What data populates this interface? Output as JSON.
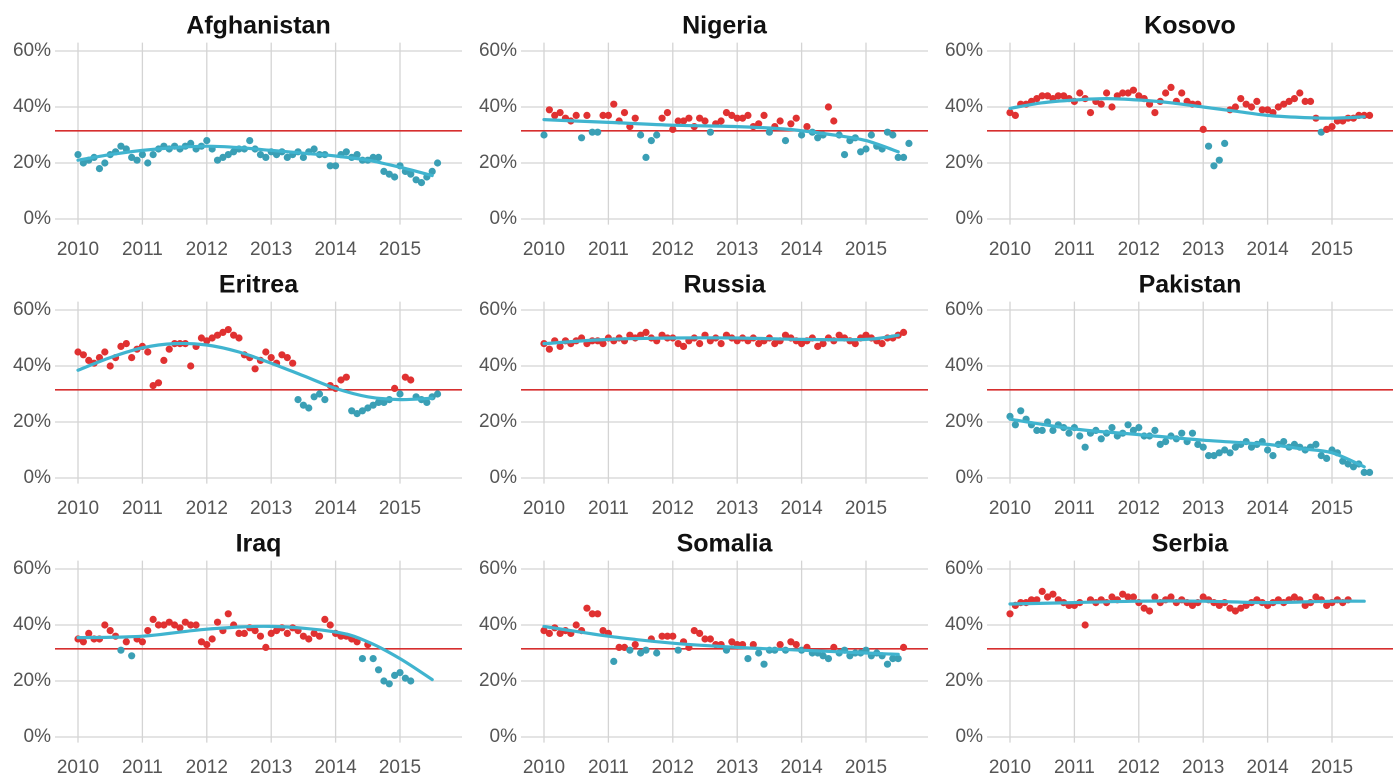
{
  "colors": {
    "above": "#e03131",
    "below": "#3a9fb5",
    "trend": "#40b4cf",
    "reference": "#d62f2f"
  },
  "chart_data": {
    "type": "scatter",
    "layout": "3x3 small multiples",
    "reference_line": 31.5,
    "x_ticks": [
      "2010",
      "2011",
      "2012",
      "2013",
      "2014",
      "2015"
    ],
    "y_ticks": [
      "0%",
      "20%",
      "40%",
      "60%"
    ],
    "xlim": [
      2009.6,
      2015.9
    ],
    "ylim": [
      -2,
      63
    ],
    "grid": true,
    "panels": [
      {
        "title": "Afghanistan",
        "x_start": 2010,
        "step_months": 1,
        "values": [
          23,
          20,
          21,
          22,
          18,
          20,
          23,
          24,
          26,
          25,
          22,
          21,
          23,
          20,
          23,
          25,
          26,
          25,
          26,
          25,
          26,
          27,
          25,
          26,
          28,
          25,
          21,
          22,
          23,
          24,
          25,
          25,
          28,
          25,
          23,
          22,
          24,
          23,
          24,
          22,
          23,
          24,
          22,
          24,
          25,
          23,
          23,
          19,
          19,
          23,
          24,
          22,
          23,
          21,
          21,
          22,
          22,
          17,
          16,
          15,
          19,
          17,
          16,
          14,
          13,
          15,
          17,
          20
        ],
        "trend": [
          [
            2010.0,
            21
          ],
          [
            2010.5,
            23
          ],
          [
            2011.0,
            24.5
          ],
          [
            2011.5,
            25.5
          ],
          [
            2012.0,
            26
          ],
          [
            2012.5,
            25.5
          ],
          [
            2013.0,
            24.5
          ],
          [
            2013.5,
            23.5
          ],
          [
            2014.0,
            22.5
          ],
          [
            2014.5,
            21
          ],
          [
            2015.0,
            18.5
          ],
          [
            2015.5,
            15.5
          ]
        ]
      },
      {
        "title": "Nigeria",
        "x_start": 2010,
        "step_months": 1,
        "values": [
          30,
          39,
          37,
          38,
          36,
          35,
          37,
          29,
          37,
          31,
          31,
          37,
          37,
          41,
          35,
          38,
          33,
          36,
          30,
          22,
          28,
          30,
          36,
          38,
          32,
          35,
          35,
          36,
          33,
          36,
          35,
          31,
          34,
          35,
          38,
          37,
          36,
          36,
          37,
          33,
          34,
          37,
          31,
          33,
          35,
          28,
          34,
          36,
          30,
          33,
          31,
          29,
          30,
          40,
          35,
          30,
          23,
          28,
          29,
          24,
          25,
          30,
          26,
          25,
          31,
          30,
          22,
          22,
          27
        ],
        "trend": [
          [
            2010.0,
            35.5
          ],
          [
            2011.0,
            34.5
          ],
          [
            2012.0,
            33.5
          ],
          [
            2013.0,
            33
          ],
          [
            2013.8,
            32
          ],
          [
            2014.5,
            30
          ],
          [
            2015.0,
            28
          ],
          [
            2015.5,
            24
          ]
        ]
      },
      {
        "title": "Kosovo",
        "x_start": 2010,
        "step_months": 1,
        "values": [
          38,
          37,
          41,
          41,
          42,
          43,
          44,
          44,
          43,
          44,
          44,
          43,
          42,
          45,
          43,
          38,
          42,
          41,
          45,
          40,
          44,
          45,
          45,
          46,
          44,
          43,
          41,
          38,
          42,
          45,
          47,
          42,
          45,
          42,
          41,
          41,
          32,
          26,
          19,
          21,
          27,
          39,
          40,
          43,
          41,
          40,
          42,
          39,
          39,
          38,
          40,
          41,
          42,
          43,
          45,
          42,
          42,
          36,
          31,
          32,
          33,
          35,
          35,
          36,
          36,
          37,
          37,
          37
        ],
        "trend": [
          [
            2010.0,
            39.5
          ],
          [
            2010.5,
            41.5
          ],
          [
            2011.0,
            42.5
          ],
          [
            2011.5,
            43
          ],
          [
            2012.0,
            42.5
          ],
          [
            2012.5,
            41.5
          ],
          [
            2013.0,
            40
          ],
          [
            2013.5,
            38.5
          ],
          [
            2014.0,
            37
          ],
          [
            2014.5,
            36.3
          ],
          [
            2015.0,
            36
          ],
          [
            2015.5,
            36.5
          ]
        ]
      },
      {
        "title": "Eritrea",
        "x_start": 2010,
        "step_months": 1,
        "values": [
          45,
          44,
          42,
          41,
          43,
          45,
          40,
          43,
          47,
          48,
          43,
          46,
          47,
          45,
          33,
          34,
          42,
          46,
          48,
          48,
          48,
          40,
          47,
          50,
          49,
          50,
          51,
          52,
          53,
          51,
          50,
          44,
          43,
          39,
          42,
          45,
          43,
          41,
          44,
          43,
          41,
          28,
          26,
          25,
          29,
          30,
          28,
          33,
          32,
          35,
          36,
          24,
          23,
          24,
          25,
          26,
          27,
          27,
          28,
          32,
          30,
          36,
          35,
          29,
          28,
          27,
          29,
          30
        ],
        "trend": [
          [
            2010.0,
            38.5
          ],
          [
            2010.5,
            43
          ],
          [
            2011.0,
            46.5
          ],
          [
            2011.5,
            48
          ],
          [
            2012.0,
            47.5
          ],
          [
            2012.5,
            45
          ],
          [
            2013.0,
            41
          ],
          [
            2013.5,
            36.5
          ],
          [
            2014.0,
            32
          ],
          [
            2014.5,
            29
          ],
          [
            2015.0,
            28
          ],
          [
            2015.5,
            28.5
          ]
        ]
      },
      {
        "title": "Russia",
        "x_start": 2010,
        "step_months": 1,
        "values": [
          48,
          46,
          49,
          47,
          49,
          48,
          49,
          50,
          48,
          49,
          49,
          48,
          50,
          49,
          50,
          49,
          51,
          50,
          51,
          52,
          50,
          49,
          51,
          50,
          50,
          48,
          47,
          49,
          50,
          48,
          51,
          49,
          50,
          48,
          51,
          50,
          49,
          50,
          49,
          50,
          48,
          49,
          50,
          48,
          49,
          51,
          50,
          49,
          48,
          49,
          50,
          47,
          48,
          50,
          49,
          51,
          50,
          49,
          48,
          50,
          51,
          50,
          49,
          48,
          50,
          50,
          51,
          52
        ],
        "trend": [
          [
            2010.0,
            48
          ],
          [
            2011.0,
            49.5
          ],
          [
            2012.0,
            50
          ],
          [
            2013.0,
            50
          ],
          [
            2014.0,
            49.5
          ],
          [
            2015.0,
            49.5
          ],
          [
            2015.5,
            51
          ]
        ]
      },
      {
        "title": "Pakistan",
        "x_start": 2010,
        "step_months": 1,
        "values": [
          22,
          19,
          24,
          21,
          19,
          17,
          17,
          20,
          17,
          19,
          18,
          16,
          18,
          15,
          11,
          16,
          17,
          14,
          16,
          18,
          15,
          16,
          19,
          17,
          18,
          15,
          15,
          17,
          12,
          13,
          15,
          14,
          16,
          13,
          16,
          12,
          11,
          8,
          8,
          9,
          10,
          9,
          11,
          12,
          13,
          11,
          12,
          13,
          10,
          8,
          12,
          13,
          11,
          12,
          11,
          10,
          11,
          12,
          8,
          7,
          10,
          9,
          6,
          5,
          4,
          5,
          2,
          2
        ],
        "trend": [
          [
            2010.0,
            21
          ],
          [
            2011.0,
            17.5
          ],
          [
            2012.0,
            15.5
          ],
          [
            2013.0,
            13.5
          ],
          [
            2014.0,
            12
          ],
          [
            2014.5,
            10.5
          ],
          [
            2015.0,
            9
          ],
          [
            2015.5,
            4
          ]
        ]
      },
      {
        "title": "Iraq",
        "x_start": 2010,
        "step_months": 1,
        "values": [
          35,
          34,
          37,
          35,
          35,
          40,
          38,
          36,
          31,
          34,
          29,
          35,
          34,
          38,
          42,
          40,
          40,
          41,
          40,
          39,
          41,
          40,
          40,
          34,
          33,
          35,
          41,
          38,
          44,
          40,
          37,
          37,
          39,
          38,
          36,
          32,
          37,
          38,
          39,
          37,
          39,
          38,
          36,
          35,
          37,
          36,
          42,
          40,
          37,
          36,
          36,
          35,
          34,
          28,
          33,
          28,
          24,
          20,
          19,
          22,
          23,
          21,
          20
        ],
        "trend": [
          [
            2010.0,
            35.5
          ],
          [
            2011.0,
            36
          ],
          [
            2012.0,
            38.5
          ],
          [
            2013.0,
            39.5
          ],
          [
            2014.0,
            37.5
          ],
          [
            2014.5,
            34
          ],
          [
            2015.0,
            28
          ],
          [
            2015.5,
            20.5
          ]
        ]
      },
      {
        "title": "Somalia",
        "x_start": 2010,
        "step_months": 1,
        "values": [
          38,
          37,
          39,
          37,
          38,
          37,
          40,
          38,
          46,
          44,
          44,
          38,
          37,
          27,
          32,
          32,
          31,
          33,
          30,
          31,
          35,
          30,
          36,
          36,
          36,
          31,
          34,
          32,
          38,
          37,
          35,
          35,
          33,
          33,
          31,
          34,
          33,
          33,
          28,
          33,
          30,
          26,
          31,
          31,
          33,
          31,
          34,
          33,
          31,
          32,
          30,
          30,
          29,
          28,
          32,
          30,
          31,
          29,
          30,
          30,
          31,
          29,
          30,
          29,
          26,
          28,
          28,
          32
        ],
        "trend": [
          [
            2010.0,
            39.5
          ],
          [
            2011.0,
            36
          ],
          [
            2012.0,
            33.5
          ],
          [
            2013.0,
            32
          ],
          [
            2014.0,
            31
          ],
          [
            2015.0,
            30
          ],
          [
            2015.5,
            29.5
          ]
        ]
      },
      {
        "title": "Serbia",
        "x_start": 2010,
        "step_months": 1,
        "values": [
          44,
          47,
          48,
          48,
          49,
          49,
          52,
          50,
          51,
          49,
          48,
          47,
          47,
          48,
          40,
          49,
          48,
          49,
          48,
          50,
          49,
          51,
          50,
          50,
          48,
          46,
          45,
          50,
          48,
          49,
          50,
          48,
          49,
          48,
          47,
          48,
          50,
          49,
          48,
          47,
          48,
          46,
          45,
          46,
          47,
          48,
          49,
          48,
          47,
          48,
          49,
          48,
          49,
          50,
          49,
          47,
          48,
          50,
          49,
          47,
          48,
          49,
          48,
          49
        ],
        "trend": [
          [
            2010.0,
            47.5
          ],
          [
            2011.0,
            48
          ],
          [
            2012.0,
            48.5
          ],
          [
            2013.0,
            48.5
          ],
          [
            2014.0,
            48
          ],
          [
            2015.0,
            48.5
          ],
          [
            2015.5,
            48.5
          ]
        ]
      }
    ]
  }
}
